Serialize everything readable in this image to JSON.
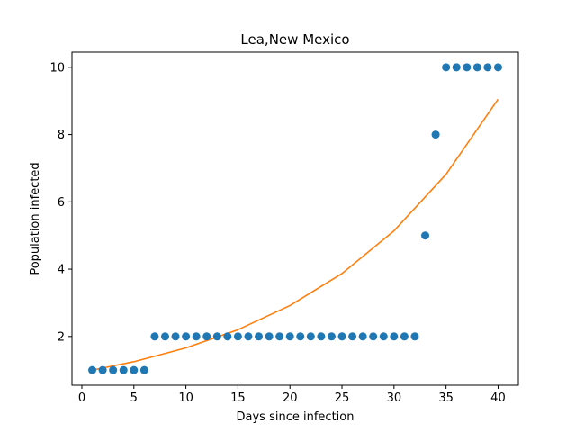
{
  "chart_data": {
    "type": "scatter",
    "title": "Lea,New Mexico",
    "xlabel": "Days since infection",
    "ylabel": "Population infected",
    "xlim": [
      -0.95,
      41.95
    ],
    "ylim": [
      0.55,
      10.45
    ],
    "xticks": [
      0,
      5,
      10,
      15,
      20,
      25,
      30,
      35,
      40
    ],
    "yticks": [
      2,
      4,
      6,
      8,
      10
    ],
    "grid": false,
    "series": [
      {
        "type": "scatter",
        "color": "#1f77b4",
        "x": [
          1,
          2,
          3,
          4,
          5,
          6,
          7,
          8,
          9,
          10,
          11,
          12,
          13,
          14,
          15,
          16,
          17,
          18,
          19,
          20,
          21,
          22,
          23,
          24,
          25,
          26,
          27,
          28,
          29,
          30,
          31,
          32,
          33,
          34,
          35,
          36,
          37,
          38,
          39,
          40
        ],
        "y": [
          1,
          1,
          1,
          1,
          1,
          1,
          2,
          2,
          2,
          2,
          2,
          2,
          2,
          2,
          2,
          2,
          2,
          2,
          2,
          2,
          2,
          2,
          2,
          2,
          2,
          2,
          2,
          2,
          2,
          2,
          2,
          2,
          5,
          8,
          10,
          10,
          10,
          10,
          10,
          10
        ]
      },
      {
        "type": "line",
        "color": "#ff7f0e",
        "x": [
          1,
          5,
          10,
          15,
          20,
          25,
          30,
          35,
          40
        ],
        "y": [
          1.0,
          1.25,
          1.66,
          2.2,
          2.92,
          3.87,
          5.14,
          6.82,
          9.05
        ]
      }
    ]
  }
}
